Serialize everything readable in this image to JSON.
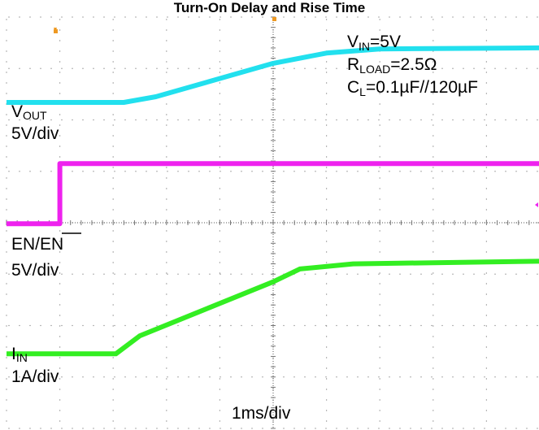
{
  "chart_data": {
    "type": "line",
    "title": "Turn-On Delay and Rise Time",
    "x_unit_label": "1ms/div",
    "x_range": [
      -5,
      5
    ],
    "y_range_div": [
      -4,
      4
    ],
    "conditions": [
      {
        "main": "V",
        "sub": "IN",
        "rest": "=5V"
      },
      {
        "main": "R",
        "sub": "LOAD",
        "rest": "=2.5Ω"
      },
      {
        "main": "C",
        "sub": "L",
        "rest": "=0.1µF//120µF"
      }
    ],
    "series": [
      {
        "name_main": "V",
        "name_sub": "OUT",
        "scale": "5V/div",
        "color": "#22e0ee",
        "x": [
          -5.0,
          -2.8,
          -2.2,
          0.0,
          1.0,
          2.0,
          5.0
        ],
        "y": [
          2.34,
          2.34,
          2.45,
          3.1,
          3.3,
          3.38,
          3.4
        ]
      },
      {
        "name_main": "EN/",
        "name_overline": "EN",
        "scale": "5V/div",
        "color": "#ee22ee",
        "x": [
          -5.0,
          -4.0,
          -4.0,
          5.0
        ],
        "y": [
          -0.02,
          -0.02,
          1.15,
          1.15
        ]
      },
      {
        "name_main": "I",
        "name_sub": "IN",
        "scale": "1A/div",
        "color": "#33ee22",
        "x": [
          -5.0,
          -2.95,
          -2.5,
          0.0,
          0.5,
          1.5,
          5.0
        ],
        "y": [
          -2.55,
          -2.55,
          -2.2,
          -1.15,
          -0.9,
          -0.8,
          -0.75
        ]
      }
    ]
  }
}
